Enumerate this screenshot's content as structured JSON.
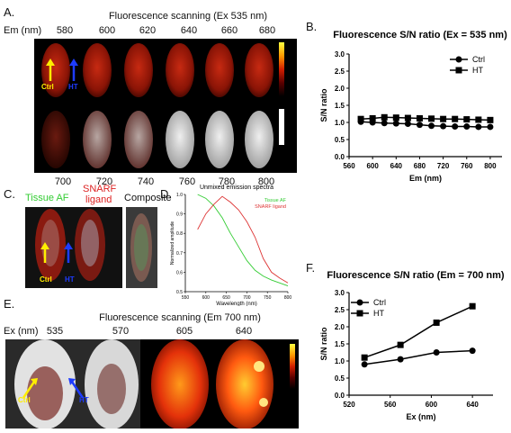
{
  "panels": {
    "A": {
      "label": "A.",
      "title": "Fluorescence scanning (Ex 535 nm)",
      "row_header": "Em (nm)",
      "top_wavelengths": [
        "580",
        "600",
        "620",
        "640",
        "660",
        "680"
      ],
      "bottom_wavelengths": [
        "700",
        "720",
        "740",
        "760",
        "780",
        "800"
      ],
      "ctrl_label": "Ctrl",
      "ht_label": "HT"
    },
    "B": {
      "label": "B."
    },
    "C": {
      "label": "C.",
      "tissue_af": "Tissue AF",
      "snarf_ligand_line1": "SNARF",
      "snarf_ligand_line2": "ligand",
      "composite": "Composite",
      "ctrl_label": "Ctrl",
      "ht_label": "HT"
    },
    "D": {
      "label": "D."
    },
    "E": {
      "label": "E.",
      "title": "Fluorescence scanning (Em 700 nm)",
      "row_header": "Ex (nm)",
      "wavelengths": [
        "535",
        "570",
        "605",
        "640"
      ],
      "ctrl_label": "Ctrl",
      "ht_label": "HT"
    },
    "F": {
      "label": "F."
    }
  },
  "colors": {
    "ctrl_arrow": "#ffee00",
    "ht_arrow": "#1e3cff",
    "tissue_af_text": "#33cc33",
    "snarf_text": "#dd2222",
    "tissue_af_line": "#33cc33",
    "snarf_line": "#dd3333"
  },
  "chart_data": [
    {
      "id": "B",
      "type": "line",
      "title": "Fluorescence S/N ratio (Ex = 535 nm)",
      "xlabel": "Em (nm)",
      "ylabel": "S/N ratio",
      "xlim": [
        560,
        820
      ],
      "ylim": [
        0,
        3.0
      ],
      "xticks": [
        560,
        600,
        640,
        680,
        720,
        760,
        800
      ],
      "yticks": [
        0,
        0.5,
        1.0,
        1.5,
        2.0,
        2.5,
        3.0
      ],
      "ytick_labels": [
        "0.0",
        "0.5",
        "1.0",
        "1.5",
        "2.0",
        "2.5",
        "3.0"
      ],
      "legend": "top-right",
      "x": [
        580,
        600,
        620,
        640,
        660,
        680,
        700,
        720,
        740,
        760,
        780,
        800
      ],
      "series": [
        {
          "name": "Ctrl",
          "marker": "circle",
          "values": [
            1.02,
            1.0,
            0.98,
            0.97,
            0.96,
            0.93,
            0.9,
            0.89,
            0.88,
            0.88,
            0.87,
            0.87
          ]
        },
        {
          "name": "HT",
          "marker": "square",
          "values": [
            1.1,
            1.12,
            1.15,
            1.14,
            1.13,
            1.12,
            1.11,
            1.1,
            1.1,
            1.09,
            1.08,
            1.07
          ]
        }
      ]
    },
    {
      "id": "D",
      "type": "line",
      "title": "Unmixed emission spectra",
      "xlabel": "Wavelength (nm)",
      "ylabel": "Normalized amplitude",
      "xlim": [
        550,
        800
      ],
      "ylim": [
        0.5,
        1.0
      ],
      "xticks": [
        550,
        600,
        650,
        700,
        750,
        800
      ],
      "yticks": [
        0.5,
        0.6,
        0.7,
        0.8,
        0.9,
        1.0
      ],
      "ytick_labels": [
        "0.5",
        "0.6",
        "0.7",
        "0.8",
        "0.9",
        "1.0"
      ],
      "legend": "top-right",
      "series": [
        {
          "name": "Tissue AF",
          "x": [
            580,
            600,
            620,
            640,
            660,
            680,
            700,
            720,
            740,
            760,
            780,
            800
          ],
          "values": [
            1.0,
            0.98,
            0.94,
            0.88,
            0.8,
            0.73,
            0.66,
            0.61,
            0.58,
            0.56,
            0.545,
            0.53
          ]
        },
        {
          "name": "SNARF ligand",
          "x": [
            580,
            600,
            620,
            640,
            660,
            680,
            700,
            720,
            740,
            760,
            780,
            800
          ],
          "values": [
            0.82,
            0.9,
            0.95,
            0.99,
            0.96,
            0.92,
            0.86,
            0.78,
            0.67,
            0.6,
            0.57,
            0.545
          ]
        }
      ]
    },
    {
      "id": "F",
      "type": "line",
      "title": "Fluorescence S/N ratio (Em = 700 nm)",
      "xlabel": "Ex (nm)",
      "ylabel": "S/N ratio",
      "xlim": [
        520,
        660
      ],
      "ylim": [
        0,
        3.0
      ],
      "xticks": [
        520,
        560,
        600,
        640
      ],
      "yticks": [
        0,
        0.5,
        1.0,
        1.5,
        2.0,
        2.5,
        3.0
      ],
      "ytick_labels": [
        "0.0",
        "0.5",
        "1.0",
        "1.5",
        "2.0",
        "2.5",
        "3.0"
      ],
      "legend": "top-left",
      "x": [
        535,
        570,
        605,
        640
      ],
      "series": [
        {
          "name": "Ctrl",
          "marker": "circle",
          "values": [
            0.9,
            1.05,
            1.25,
            1.3
          ]
        },
        {
          "name": "HT",
          "marker": "square",
          "values": [
            1.1,
            1.47,
            2.12,
            2.6
          ]
        }
      ]
    }
  ]
}
